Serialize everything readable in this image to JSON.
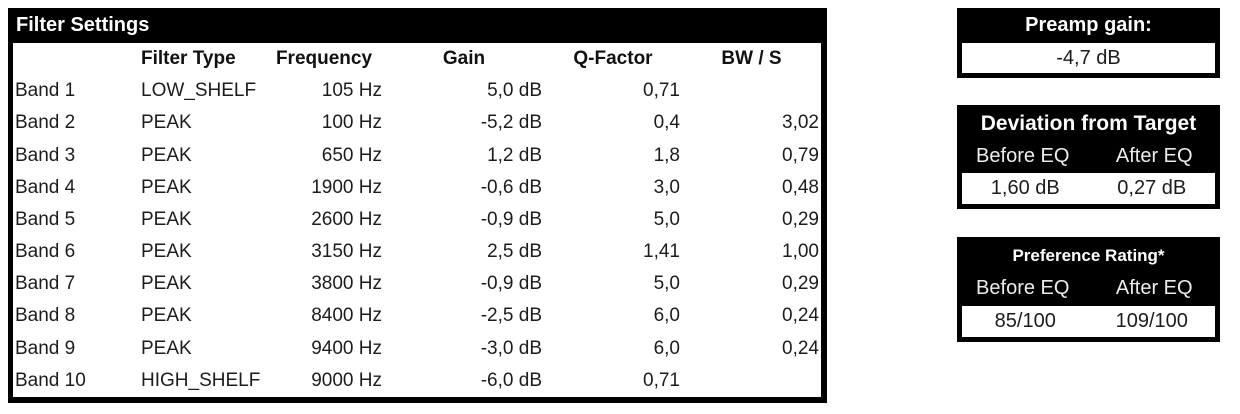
{
  "filter_table": {
    "title": "Filter Settings",
    "columns": [
      "",
      "Filter Type",
      "Frequency",
      "Gain",
      "Q-Factor",
      "BW / S"
    ],
    "rows": [
      {
        "band": "Band 1",
        "type": "LOW_SHELF",
        "freq": "105 Hz",
        "gain": "5,0 dB",
        "q": "0,71",
        "bw": ""
      },
      {
        "band": "Band 2",
        "type": "PEAK",
        "freq": "100 Hz",
        "gain": "-5,2 dB",
        "q": "0,4",
        "bw": "3,02"
      },
      {
        "band": "Band 3",
        "type": "PEAK",
        "freq": "650 Hz",
        "gain": "1,2 dB",
        "q": "1,8",
        "bw": "0,79"
      },
      {
        "band": "Band 4",
        "type": "PEAK",
        "freq": "1900 Hz",
        "gain": "-0,6 dB",
        "q": "3,0",
        "bw": "0,48"
      },
      {
        "band": "Band 5",
        "type": "PEAK",
        "freq": "2600 Hz",
        "gain": "-0,9 dB",
        "q": "5,0",
        "bw": "0,29"
      },
      {
        "band": "Band 6",
        "type": "PEAK",
        "freq": "3150 Hz",
        "gain": "2,5 dB",
        "q": "1,41",
        "bw": "1,00"
      },
      {
        "band": "Band 7",
        "type": "PEAK",
        "freq": "3800 Hz",
        "gain": "-0,9 dB",
        "q": "5,0",
        "bw": "0,29"
      },
      {
        "band": "Band 8",
        "type": "PEAK",
        "freq": "8400 Hz",
        "gain": "-2,5 dB",
        "q": "6,0",
        "bw": "0,24"
      },
      {
        "band": "Band 9",
        "type": "PEAK",
        "freq": "9400 Hz",
        "gain": "-3,0 dB",
        "q": "6,0",
        "bw": "0,24"
      },
      {
        "band": "Band 10",
        "type": "HIGH_SHELF",
        "freq": "9000 Hz",
        "gain": "-6,0 dB",
        "q": "0,71",
        "bw": ""
      }
    ]
  },
  "preamp": {
    "title": "Preamp gain:",
    "value": "-4,7 dB"
  },
  "deviation": {
    "title": "Deviation from Target",
    "col_before": "Before EQ",
    "col_after": "After EQ",
    "before_value": "1,60 dB",
    "after_value": "0,27 dB"
  },
  "preference": {
    "title": "Preference Rating*",
    "col_before": "Before EQ",
    "col_after": "After EQ",
    "before_value": "85/100",
    "after_value": "109/100"
  },
  "colors": {
    "header_bg": "#000000",
    "header_text": "#ffffff",
    "body_bg": "#ffffff",
    "body_text": "#1c1c1c"
  }
}
